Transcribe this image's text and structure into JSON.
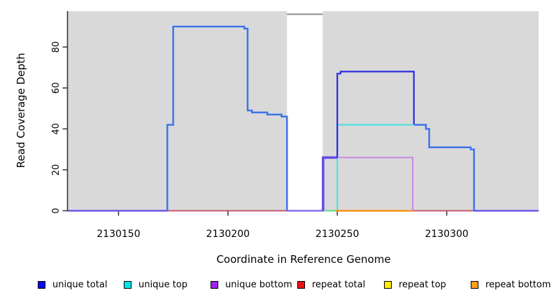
{
  "chart_data": {
    "type": "line",
    "subtype": "step-coverage",
    "title": "",
    "xlabel": "Coordinate in Reference Genome",
    "ylabel": "Read Coverage Depth",
    "xlim": [
      2130127,
      2130342
    ],
    "ylim": [
      0,
      97.5
    ],
    "grid": false,
    "plot_background": "#D9D9D9",
    "page_background": "#FFFFFF",
    "axis_color": "#333333",
    "tick_label_color": "#000000",
    "x_ticks": {
      "values": [
        2130150,
        2130200,
        2130250,
        2130300
      ],
      "labels": [
        "2130150",
        "2130200",
        "2130250",
        "2130300"
      ]
    },
    "y_ticks": {
      "values": [
        0,
        20,
        40,
        60,
        80
      ],
      "labels": [
        "0",
        "20",
        "40",
        "60",
        "80"
      ]
    },
    "masked_region": {
      "x_start": 2130227,
      "x_end": 2130243.3,
      "fill": "#FFFFFF",
      "top_line_value": 96,
      "top_line_color": "#8C8C8C"
    },
    "series": [
      {
        "name": "zero-line-left-edge",
        "color": "#6A58EE",
        "width": 2.5,
        "points": [
          [
            2130127,
            0
          ],
          [
            2130172.3,
            0
          ]
        ]
      },
      {
        "name": "repeat-total-zero-left",
        "color": "#DC4862",
        "width": 1.6,
        "points": [
          [
            2130172.3,
            0
          ],
          [
            2130227,
            0
          ]
        ]
      },
      {
        "name": "zero-line-masked-gap",
        "color": "#8A6CF0",
        "width": 2.5,
        "points": [
          [
            2130227,
            0
          ],
          [
            2130243.5,
            0
          ]
        ]
      },
      {
        "name": "repeat-total-zero-right",
        "color": "#DC4862",
        "width": 1.6,
        "points": [
          [
            2130285,
            0
          ],
          [
            2130312.5,
            0
          ]
        ]
      },
      {
        "name": "zero-line-right-edge",
        "color": "#6A58EE",
        "width": 2.5,
        "points": [
          [
            2130312.5,
            0
          ],
          [
            2130342,
            0
          ]
        ]
      },
      {
        "name": "unique-top",
        "color": "#3FE4E4",
        "width": 2.0,
        "points": [
          [
            2130243.5,
            0
          ],
          [
            2130250,
            42
          ],
          [
            2130284.5,
            42
          ]
        ]
      },
      {
        "name": "overlap-zero-green",
        "color": "#63D98E",
        "width": 2.0,
        "points": [
          [
            2130243.5,
            0
          ],
          [
            2130249,
            0
          ]
        ]
      },
      {
        "name": "repeat-bottom-zero",
        "color": "#FF9414",
        "width": 2.5,
        "points": [
          [
            2130249,
            0
          ],
          [
            2130285,
            0
          ]
        ]
      },
      {
        "name": "unique-bottom",
        "color": "#C77FE3",
        "width": 1.8,
        "points": [
          [
            2130250.5,
            26
          ],
          [
            2130284.5,
            26
          ],
          [
            2130284.5,
            0
          ]
        ]
      },
      {
        "name": "unique-total-right-rise",
        "color": "#5F4BEA",
        "width": 3.5,
        "points": [
          [
            2130243.5,
            0
          ],
          [
            2130243.5,
            26
          ],
          [
            2130250,
            26
          ]
        ]
      },
      {
        "name": "unique-total-left-block",
        "color": "#3E74EA",
        "width": 2.5,
        "points": [
          [
            2130172.3,
            0
          ],
          [
            2130172.3,
            42
          ],
          [
            2130175,
            90
          ],
          [
            2130207.5,
            89
          ],
          [
            2130209,
            49
          ],
          [
            2130211,
            48
          ],
          [
            2130218,
            47
          ],
          [
            2130224.5,
            46
          ],
          [
            2130227,
            0
          ]
        ]
      },
      {
        "name": "unique-total-right-top",
        "color": "#2A2ADF",
        "width": 2.2,
        "points": [
          [
            2130250,
            26
          ],
          [
            2130250,
            67
          ],
          [
            2130251.5,
            68
          ],
          [
            2130285,
            42
          ]
        ]
      },
      {
        "name": "unique-total-right-tail",
        "color": "#3E74EA",
        "width": 2.5,
        "points": [
          [
            2130285,
            42
          ],
          [
            2130290.5,
            40
          ],
          [
            2130292,
            31
          ],
          [
            2130311,
            30
          ],
          [
            2130312.5,
            0
          ]
        ]
      }
    ],
    "legend": {
      "position": "bottom",
      "entries": [
        {
          "label": "unique total",
          "color": "#0A0AEE"
        },
        {
          "label": "unique top",
          "color": "#00E6E6"
        },
        {
          "label": "unique bottom",
          "color": "#A020F0"
        },
        {
          "label": "repeat total",
          "color": "#EE1111"
        },
        {
          "label": "repeat top",
          "color": "#FFEE00"
        },
        {
          "label": "repeat bottom",
          "color": "#FFA018"
        }
      ]
    }
  }
}
